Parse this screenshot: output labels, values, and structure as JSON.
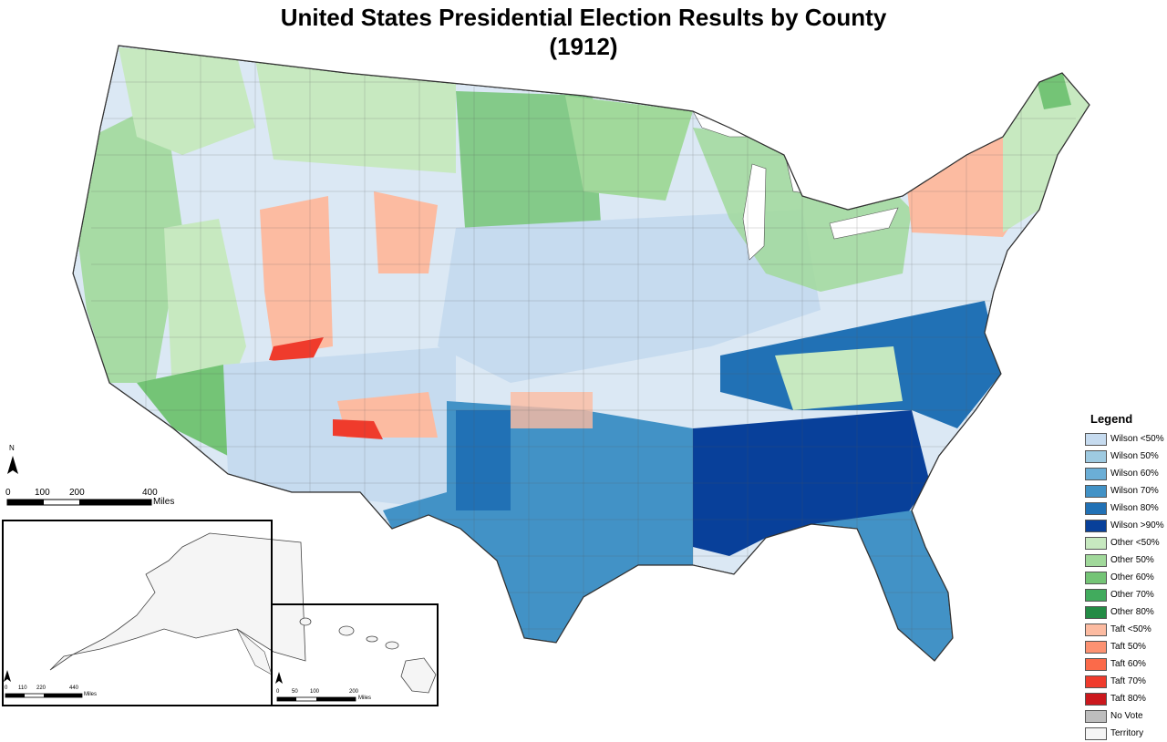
{
  "title": {
    "line1": "United States Presidential Election Results by County",
    "line2": "(1912)"
  },
  "legend": {
    "title": "Legend",
    "items": [
      {
        "label": "Wilson <50%",
        "color": "#c6dbef"
      },
      {
        "label": "Wilson 50%",
        "color": "#9ecae1"
      },
      {
        "label": "Wilson 60%",
        "color": "#6baed6"
      },
      {
        "label": "Wilson 70%",
        "color": "#4292c6"
      },
      {
        "label": "Wilson 80%",
        "color": "#2171b5"
      },
      {
        "label": "Wilson >90%",
        "color": "#08409a"
      },
      {
        "label": "Other <50%",
        "color": "#c7e9c0"
      },
      {
        "label": "Other 50%",
        "color": "#a1d99b"
      },
      {
        "label": "Other 60%",
        "color": "#74c476"
      },
      {
        "label": "Other 70%",
        "color": "#41ab5d"
      },
      {
        "label": "Other 80%",
        "color": "#238b45"
      },
      {
        "label": "Taft <50%",
        "color": "#fcbba1"
      },
      {
        "label": "Taft 50%",
        "color": "#fc9272"
      },
      {
        "label": "Taft 60%",
        "color": "#fb6a4a"
      },
      {
        "label": "Taft 70%",
        "color": "#ef3b2c"
      },
      {
        "label": "Taft 80%",
        "color": "#cb181d"
      },
      {
        "label": "No Vote",
        "color": "#bdbdbd"
      },
      {
        "label": "Territory",
        "color": "#f5f5f5"
      }
    ]
  },
  "main_scale": {
    "ticks": [
      "0",
      "100",
      "200",
      "400"
    ],
    "unit": "Miles"
  },
  "alaska_scale": {
    "ticks": [
      "0",
      "110",
      "220",
      "440"
    ],
    "unit": "Miles"
  },
  "hawaii_scale": {
    "ticks": [
      "0",
      "50",
      "100",
      "200"
    ],
    "unit": "Miles"
  },
  "north_arrow": {
    "label": "N"
  }
}
